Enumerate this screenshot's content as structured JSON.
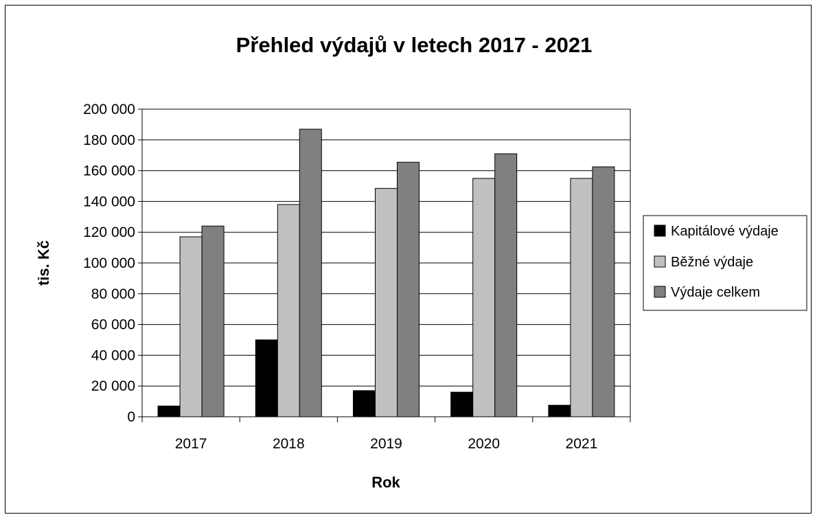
{
  "chart_data": {
    "type": "bar",
    "title": "Přehled výdajů v letech 2017 - 2021",
    "xlabel": "Rok",
    "ylabel": "tis. Kč",
    "categories": [
      "2017",
      "2018",
      "2019",
      "2020",
      "2021"
    ],
    "series": [
      {
        "name": "Kapitálové výdaje",
        "color": "#000000",
        "values": [
          7000,
          50000,
          17000,
          16000,
          7500
        ]
      },
      {
        "name": "Běžné výdaje",
        "color": "#c0c0c0",
        "values": [
          117000,
          138000,
          148500,
          155000,
          155000
        ]
      },
      {
        "name": "Výdaje celkem",
        "color": "#808080",
        "values": [
          124000,
          187000,
          165500,
          171000,
          162500
        ]
      }
    ],
    "ylim": [
      0,
      200000
    ],
    "yticks": [
      0,
      20000,
      40000,
      60000,
      80000,
      100000,
      120000,
      140000,
      160000,
      180000,
      200000
    ],
    "ytick_labels": [
      "0",
      "20 000",
      "40 000",
      "60 000",
      "80 000",
      "100 000",
      "120 000",
      "140 000",
      "160 000",
      "180 000",
      "200 000"
    ],
    "grid": true,
    "legend_position": "right"
  }
}
